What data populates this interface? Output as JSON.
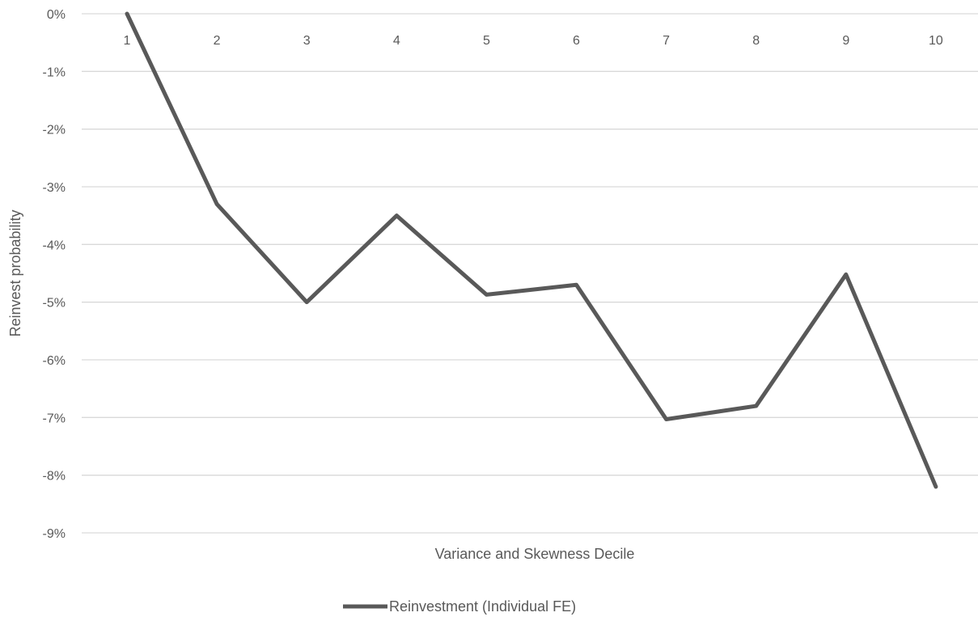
{
  "chart_data": {
    "type": "line",
    "title": "",
    "xlabel": "Variance and Skewness Decile",
    "ylabel": "Reinvest  probability",
    "categories": [
      "1",
      "2",
      "3",
      "4",
      "5",
      "6",
      "7",
      "8",
      "9",
      "10"
    ],
    "series": [
      {
        "name": "Reinvestment (Individual  FE)",
        "color": "#595959",
        "values": [
          0.0,
          -3.3,
          -5.0,
          -3.5,
          -4.87,
          -4.7,
          -7.03,
          -6.8,
          -4.52,
          -8.2
        ]
      }
    ],
    "y_ticks": [
      "0%",
      "-1%",
      "-2%",
      "-3%",
      "-4%",
      "-5%",
      "-6%",
      "-7%",
      "-8%",
      "-9%"
    ],
    "ylim": [
      -9,
      0
    ],
    "y_unit": "%",
    "grid": true,
    "legend_position": "bottom"
  }
}
